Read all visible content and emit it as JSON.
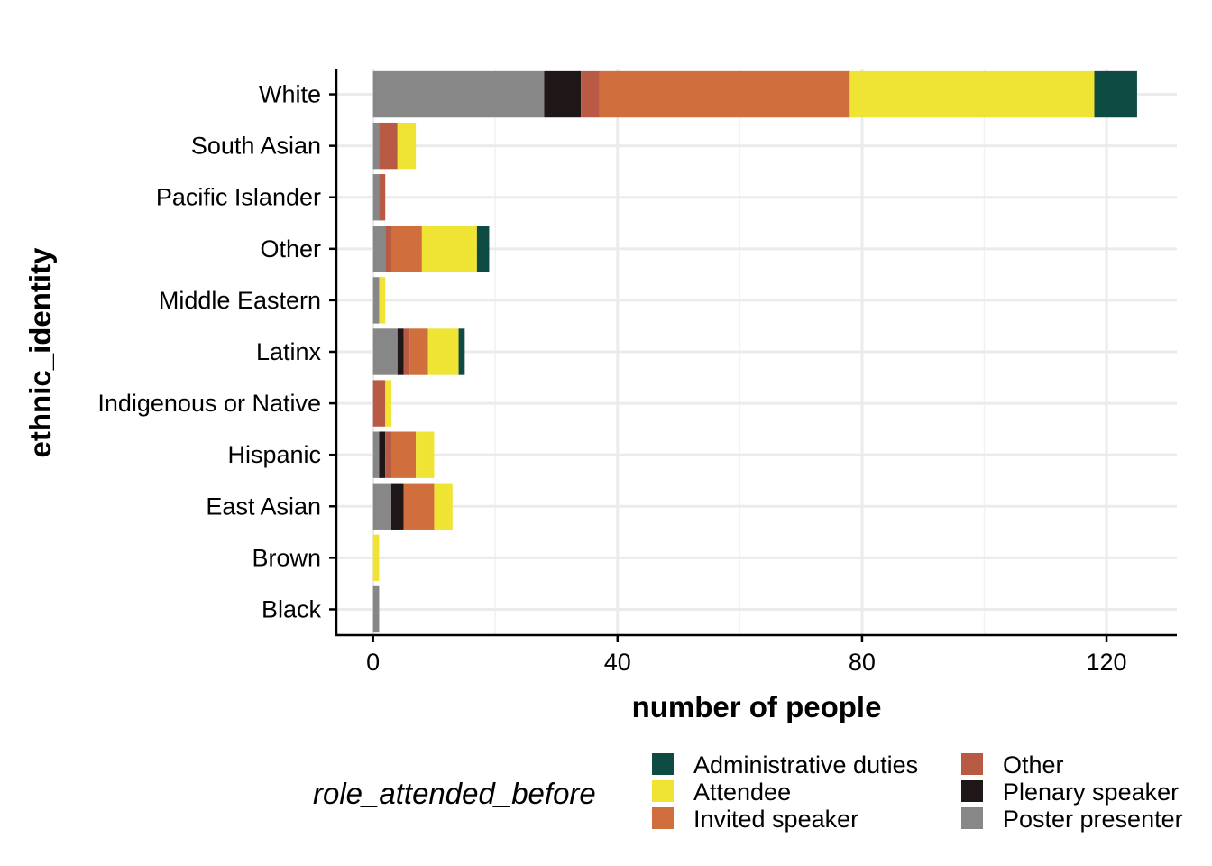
{
  "chart_data": {
    "type": "bar",
    "orientation": "horizontal",
    "stacked": true,
    "xlabel": "number of people",
    "ylabel": "ethnic_identity",
    "xlim": [
      -6,
      131.5
    ],
    "xticks": [
      0,
      40,
      80,
      120
    ],
    "xtick_labels": [
      "0",
      "40",
      "80",
      "120"
    ],
    "grid": true,
    "legend_title": "role_attended_before",
    "legend_position": "bottom",
    "categories": [
      "Black",
      "Brown",
      "East Asian",
      "Hispanic",
      "Indigenous or Native",
      "Latinx",
      "Middle Eastern",
      "Other",
      "Pacific Islander",
      "South Asian",
      "White"
    ],
    "stack_order": [
      "Poster presenter",
      "Plenary speaker",
      "Other",
      "Invited speaker",
      "Attendee",
      "Administrative duties"
    ],
    "series": [
      {
        "name": "Administrative duties",
        "color": "#0d4b43",
        "values": [
          0,
          0,
          0,
          0,
          0,
          1,
          0,
          2,
          0,
          0,
          7
        ]
      },
      {
        "name": "Attendee",
        "color": "#efe334",
        "values": [
          0,
          1,
          3,
          3,
          1,
          5,
          1,
          9,
          0,
          3,
          40
        ]
      },
      {
        "name": "Invited speaker",
        "color": "#d06f3d",
        "values": [
          0,
          0,
          5,
          4,
          0,
          3,
          0,
          5,
          0,
          0,
          41
        ]
      },
      {
        "name": "Other",
        "color": "#b85a44",
        "values": [
          0,
          0,
          0,
          1,
          2,
          1,
          0,
          1,
          1,
          3,
          3
        ]
      },
      {
        "name": "Plenary speaker",
        "color": "#1f1717",
        "values": [
          0,
          0,
          2,
          1,
          0,
          1,
          0,
          0,
          0,
          0,
          6
        ]
      },
      {
        "name": "Poster presenter",
        "color": "#878787",
        "values": [
          1,
          0,
          3,
          1,
          0,
          4,
          1,
          2,
          1,
          1,
          28
        ]
      }
    ],
    "legend_order": [
      "Administrative duties",
      "Attendee",
      "Invited speaker",
      "Other",
      "Plenary speaker",
      "Poster presenter"
    ]
  }
}
